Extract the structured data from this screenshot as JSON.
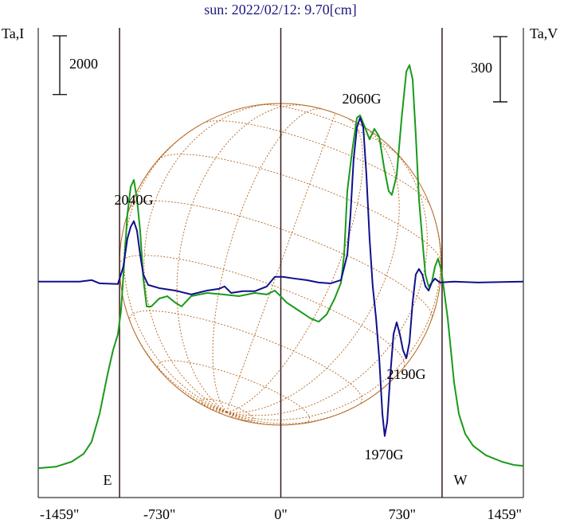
{
  "chart_data": {
    "type": "line",
    "title": "sun: 2022/02/12: 9.70[cm]",
    "y_label": "Ta,I",
    "y2_label": "Ta,V",
    "xlim": [
      -1459,
      1459
    ],
    "xticks": [
      {
        "value": -1459,
        "label": "-1459\""
      },
      {
        "value": -730,
        "label": "-730\""
      },
      {
        "value": 0,
        "label": "0\""
      },
      {
        "value": 730,
        "label": "730\""
      },
      {
        "value": 1459,
        "label": "1459\""
      }
    ],
    "ylim": [
      0,
      16000
    ],
    "y2lim": [
      -1000,
      1160
    ],
    "scale_bars": [
      {
        "axis": "y",
        "value": 2000
      },
      {
        "axis": "y2",
        "value": 300
      }
    ],
    "vlines": [
      -970,
      0,
      970
    ],
    "limb_labels": [
      "E",
      "W"
    ],
    "annotations": [
      "2040G",
      "2060G",
      "2190G",
      "1970G"
    ],
    "series": [
      {
        "color": "#1a9a1a",
        "axis": "y",
        "x": [
          -1459,
          -1353,
          -1258,
          -1186,
          -1138,
          -1090,
          -1042,
          -1009,
          -980,
          -961,
          -942,
          -923,
          -903,
          -884,
          -865,
          -846,
          -827,
          -807,
          -779,
          -731,
          -683,
          -635,
          -597,
          -539,
          -443,
          -347,
          -252,
          -156,
          -84,
          -36,
          -12,
          36,
          108,
          180,
          228,
          276,
          324,
          362,
          381,
          400,
          429,
          458,
          477,
          506,
          534,
          563,
          592,
          621,
          649,
          668,
          697,
          726,
          755,
          774,
          793,
          812,
          831,
          851,
          870,
          889,
          908,
          927,
          946,
          966,
          985,
          1004,
          1023,
          1042,
          1071,
          1109,
          1157,
          1234,
          1330,
          1402,
          1459
        ],
        "values": [
          1000,
          1050,
          1220,
          1490,
          1900,
          2850,
          4200,
          5020,
          5560,
          6370,
          8000,
          9630,
          10580,
          10820,
          10170,
          9090,
          7460,
          6510,
          6510,
          6780,
          6860,
          6640,
          6510,
          6860,
          6970,
          6920,
          6860,
          6970,
          6920,
          7050,
          6920,
          6640,
          6370,
          6100,
          5990,
          6240,
          6780,
          7320,
          8270,
          10440,
          11800,
          12940,
          13020,
          12610,
          12200,
          12560,
          12290,
          11250,
          10440,
          10310,
          10980,
          12880,
          14510,
          14730,
          14240,
          12340,
          10170,
          8810,
          7590,
          7190,
          7320,
          7860,
          8140,
          7730,
          6920,
          6100,
          5020,
          3930,
          2850,
          2170,
          1760,
          1440,
          1220,
          1110,
          1080
        ]
      },
      {
        "color": "#10108c",
        "axis": "y2",
        "x": [
          -1459,
          -1210,
          -1138,
          -1090,
          -980,
          -947,
          -923,
          -903,
          -884,
          -865,
          -846,
          -827,
          -798,
          -731,
          -635,
          -539,
          -443,
          -371,
          -338,
          -299,
          -228,
          -156,
          -84,
          -36,
          12,
          84,
          156,
          228,
          300,
          362,
          400,
          419,
          438,
          458,
          477,
          496,
          515,
          534,
          553,
          573,
          592,
          611,
          625,
          640,
          659,
          678,
          697,
          716,
          735,
          755,
          774,
          793,
          812,
          831,
          851,
          870,
          889,
          908,
          927,
          956,
          1042,
          1186,
          1459
        ],
        "values": [
          -7,
          -7,
          0,
          -15,
          -18,
          62,
          190,
          245,
          271,
          227,
          117,
          26,
          -22,
          -37,
          -48,
          -66,
          -48,
          -40,
          -29,
          -59,
          -51,
          -51,
          -29,
          15,
          15,
          7,
          0,
          -11,
          -15,
          0,
          117,
          300,
          556,
          703,
          747,
          703,
          483,
          190,
          -29,
          -176,
          -359,
          -615,
          -717,
          -652,
          -432,
          -249,
          -194,
          -249,
          -322,
          -359,
          -285,
          -102,
          26,
          51,
          26,
          -29,
          -48,
          -11,
          7,
          -11,
          -7,
          -11,
          -7
        ]
      }
    ]
  }
}
